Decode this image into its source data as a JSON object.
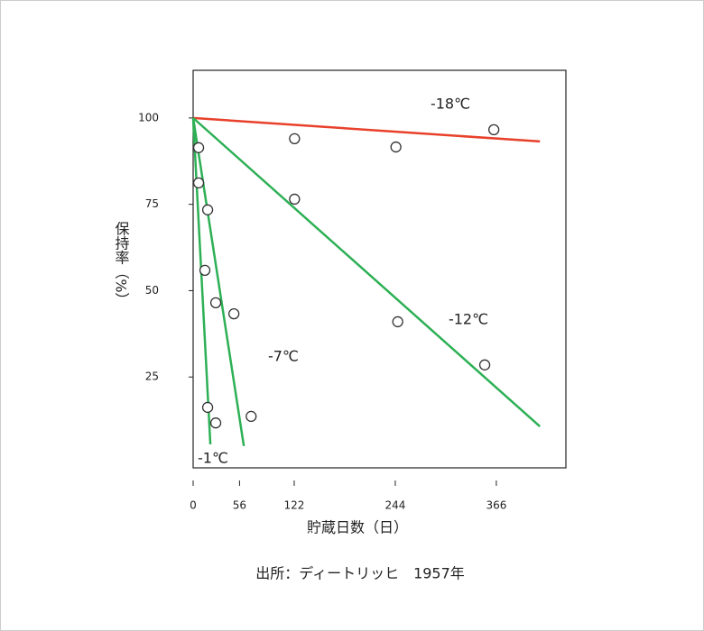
{
  "chart_data": {
    "type": "scatter",
    "x_label": "貯蔵日数（日）",
    "y_label": "保持率（%）",
    "source": "出所：ディートリッヒ　1957年",
    "xlim": [
      0,
      450
    ],
    "ylim": [
      -1.3,
      113.8
    ],
    "xticks": [
      0,
      56,
      122,
      244,
      366
    ],
    "yticks": [
      25,
      50,
      75,
      100
    ],
    "points": {
      "color": "#333333",
      "x": [
        6.6,
        6.6,
        17.5,
        14.2,
        27.3,
        49.2,
        17.5,
        27.3,
        70,
        122.4,
        122.4,
        244.8,
        247,
        352,
        363
      ],
      "values": [
        91.4,
        81.2,
        73.4,
        55.9,
        46.5,
        43.3,
        16.2,
        11.7,
        13.6,
        94.0,
        76.5,
        91.6,
        41,
        28.5,
        96.6
      ]
    },
    "series": [
      {
        "name": "-18℃",
        "color": "#e8402a",
        "x": [
          0,
          418.6
        ],
        "values": [
          100,
          93.2
        ]
      },
      {
        "name": "-12℃",
        "color": "#2db055",
        "x": [
          0,
          418.6
        ],
        "values": [
          100,
          10.7
        ]
      },
      {
        "name": "-7℃",
        "color": "#2db055",
        "x": [
          0,
          61.2
        ],
        "values": [
          100,
          5.0
        ]
      },
      {
        "name": "-1℃",
        "color": "#2db055",
        "x": [
          0,
          20.8
        ],
        "values": [
          100,
          5.5
        ]
      }
    ]
  }
}
